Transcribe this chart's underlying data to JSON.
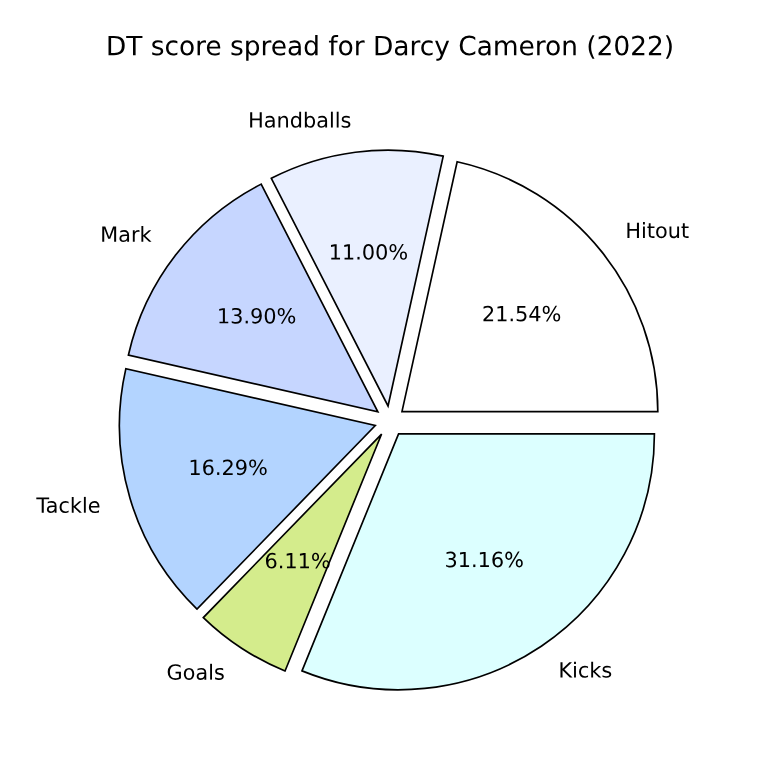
{
  "chart_data": {
    "type": "pie",
    "title": "DT score spread for Darcy Cameron (2022)",
    "categories": [
      "Hitout",
      "Handballs",
      "Mark",
      "Tackle",
      "Goals",
      "Kicks"
    ],
    "values": [
      21.54,
      11.0,
      13.9,
      16.29,
      6.11,
      31.16
    ],
    "value_labels": [
      "21.54%",
      "11.00%",
      "13.90%",
      "16.29%",
      "6.11%",
      "31.16%"
    ],
    "colors": [
      "#ffffff",
      "#eaf0ff",
      "#c6d6ff",
      "#b3d4ff",
      "#d4ec8c",
      "#dcffff"
    ],
    "legend": false
  }
}
